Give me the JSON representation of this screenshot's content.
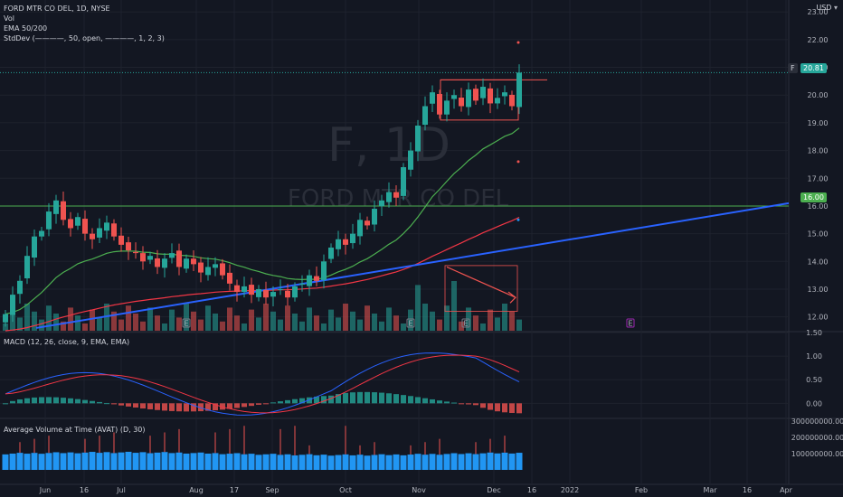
{
  "header": {
    "symbol_line": "FORD MTR CO DEL, 1D, NYSE",
    "vol_label": "Vol",
    "ema_label": "EMA 50/200",
    "stddev_label": "StdDev (————, 50, open, ————, 1, 2, 3)",
    "currency": "USD"
  },
  "watermark": {
    "ticker": "F, 1D",
    "name": "FORD MTR CO DEL"
  },
  "price_tag": {
    "symbol": "F",
    "value": "20.81"
  },
  "line_tag": {
    "value": "16.00"
  },
  "macd": {
    "title": "MACD (12, 26, close, 9, EMA, EMA)",
    "colors": {
      "macd": "#2962ff",
      "signal": "#f23645",
      "hist_pos": "#26a69a",
      "hist_neg": "#ef5350"
    }
  },
  "avat": {
    "title": "Average Volume at Time (AVAT) (D, 30)",
    "colors": {
      "bar": "#2196f3",
      "vol": "#ef5350"
    }
  },
  "earnings_marker": "E",
  "chart_data": [
    {
      "type": "candlestick",
      "name": "price",
      "y_ticks": [
        "23.00",
        "22.00",
        "21.00",
        "20.00",
        "19.00",
        "18.00",
        "17.00",
        "16.00",
        "15.00",
        "14.00",
        "13.00",
        "12.00"
      ],
      "ylim": [
        11.5,
        23.3
      ],
      "x_ticks": [
        "Jun",
        "16",
        "Jul",
        "Aug",
        "17",
        "Sep",
        "Oct",
        "Nov",
        "Dec",
        "16",
        "2022",
        "Feb",
        "Mar",
        "16",
        "Apr"
      ],
      "close_series": [
        12.1,
        12.8,
        13.3,
        14.2,
        14.9,
        15.1,
        15.8,
        16.2,
        15.5,
        15.2,
        15.6,
        15.0,
        14.8,
        15.2,
        15.4,
        14.9,
        14.6,
        14.4,
        14.3,
        14.0,
        14.2,
        13.8,
        14.1,
        14.3,
        13.8,
        14.1,
        13.9,
        13.6,
        13.8,
        13.9,
        13.5,
        13.2,
        12.9,
        13.1,
        12.8,
        13.0,
        12.7,
        12.9,
        13.0,
        12.7,
        13.1,
        13.2,
        13.5,
        13.3,
        14.0,
        14.5,
        14.8,
        14.6,
        15.0,
        15.5,
        15.3,
        15.9,
        16.2,
        16.5,
        16.3,
        17.4,
        18.0,
        18.9,
        19.6,
        20.1,
        19.3,
        19.8,
        20.0,
        19.6,
        20.2,
        19.8,
        20.3,
        19.7,
        19.9,
        20.1,
        19.6,
        20.81
      ],
      "horizontal_line": 16.0,
      "trend_line": {
        "from": [
          0,
          11.6
        ],
        "to": [
          1.0,
          16.1
        ]
      },
      "ema50_color": "#4caf50",
      "ema200_color": "#f23645",
      "up_color": "#26a69a",
      "down_color": "#ef5350"
    },
    {
      "type": "line",
      "name": "macd",
      "y_ticks": [
        "1.50",
        "1.00",
        "0.50",
        "0.00"
      ],
      "ylim": [
        -0.3,
        1.5
      ]
    },
    {
      "type": "bar",
      "name": "avat",
      "y_ticks": [
        "300000000.00",
        "200000000.00",
        "100000000.00"
      ],
      "ylim": [
        0,
        310000000
      ]
    }
  ]
}
